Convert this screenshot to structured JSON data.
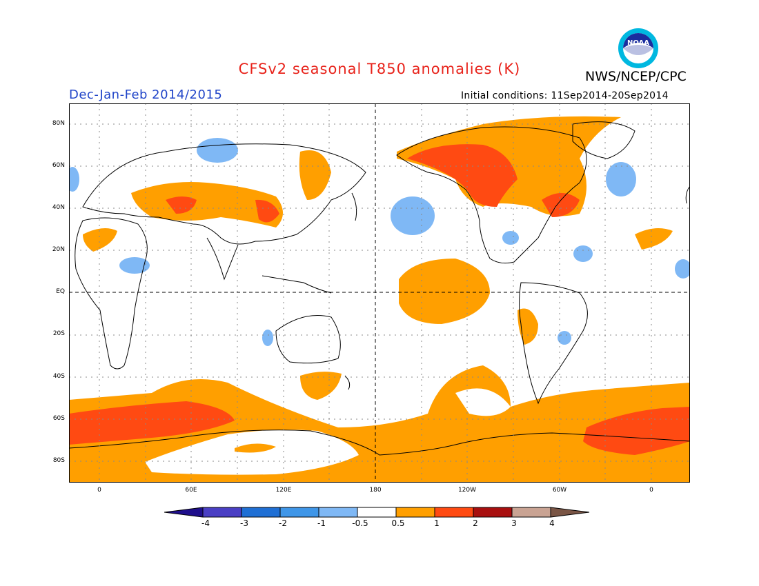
{
  "header": {
    "title": "CFSv2 seasonal T850 anomalies (K)",
    "org": "NWS/NCEP/CPC",
    "season": "Dec-Jan-Feb 2014/2015",
    "initial_conditions": "Initial conditions: 11Sep2014-20Sep2014",
    "logo_text": "NOAA"
  },
  "map": {
    "lat_labels": [
      "80N",
      "60N",
      "40N",
      "20N",
      "EQ",
      "20S",
      "40S",
      "60S",
      "80S"
    ],
    "lon_labels": [
      "0",
      "60E",
      "120E",
      "180",
      "120W",
      "60W",
      "0"
    ]
  },
  "legend": {
    "units": "K",
    "labels": [
      "-4",
      "-3",
      "-2",
      "-1",
      "-0.5",
      "0.5",
      "1",
      "2",
      "3",
      "4"
    ],
    "colors": [
      "#1f0f8c",
      "#4a3fc4",
      "#1f6fd4",
      "#3f96e8",
      "#7fb8f5",
      "#ffffff",
      "#ff9f00",
      "#ff4a12",
      "#a80f0f",
      "#c9a393",
      "#7a5545"
    ]
  }
}
